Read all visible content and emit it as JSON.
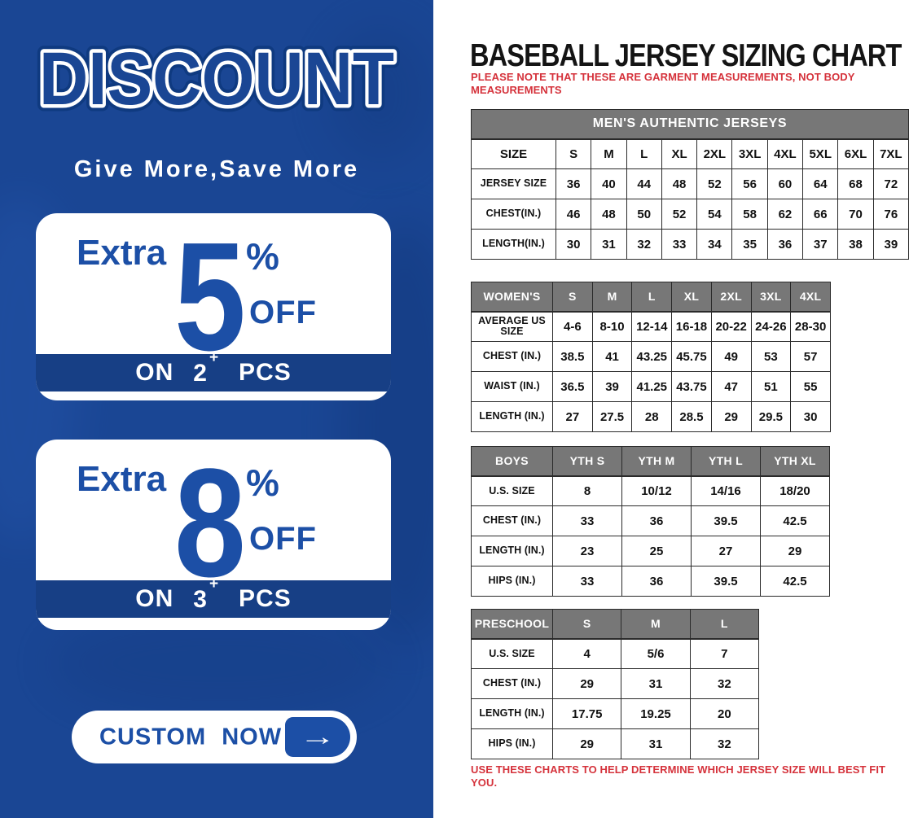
{
  "left_panel": {
    "headline": "DISCOUNT",
    "subtitle": "Give More,Save More",
    "offers": [
      {
        "extra": "Extra",
        "percent": "5",
        "percent_sign": "%",
        "off_label": "OFF",
        "on_label": "ON",
        "qty": "2",
        "plus": "+",
        "pcs_label": "PCS"
      },
      {
        "extra": "Extra",
        "percent": "8",
        "percent_sign": "%",
        "off_label": "OFF",
        "on_label": "ON",
        "qty": "3",
        "plus": "+",
        "pcs_label": "PCS"
      }
    ],
    "cta": {
      "label": "CUSTOM NOW",
      "arrow": "→"
    },
    "colors": {
      "panel_blue": "#1a4694",
      "accent_blue": "#1c4fa6",
      "band_blue": "#173f85"
    }
  },
  "right_panel": {
    "title": "BASEBALL JERSEY SIZING CHART",
    "note_top": "PLEASE NOTE THAT THESE ARE GARMENT MEASUREMENTS, NOT BODY MEASUREMENTS",
    "note_bottom": "USE THESE CHARTS TO HELP DETERMINE WHICH JERSEY SIZE WILL BEST FIT YOU.",
    "colors": {
      "header_gray": "#777777",
      "note_red": "#d5323b",
      "border": "#2a2a2a"
    },
    "tables": [
      {
        "banner": "MEN'S AUTHENTIC JERSEYS",
        "gray_header": false,
        "label_width": 104,
        "header": [
          "SIZE",
          "S",
          "M",
          "L",
          "XL",
          "2XL",
          "3XL",
          "4XL",
          "5XL",
          "6XL",
          "7XL"
        ],
        "rows": [
          [
            "JERSEY SIZE",
            "36",
            "40",
            "44",
            "48",
            "52",
            "56",
            "60",
            "64",
            "68",
            "72"
          ],
          [
            "CHEST(IN.)",
            "46",
            "48",
            "50",
            "52",
            "54",
            "58",
            "62",
            "66",
            "70",
            "76"
          ],
          [
            "LENGTH(IN.)",
            "30",
            "31",
            "32",
            "33",
            "34",
            "35",
            "36",
            "37",
            "38",
            "39"
          ]
        ]
      },
      {
        "banner": null,
        "gray_header": true,
        "label_width": 100,
        "header": [
          "WOMEN'S",
          "S",
          "M",
          "L",
          "XL",
          "2XL",
          "3XL",
          "4XL"
        ],
        "rows": [
          [
            "AVERAGE US SIZE",
            "4-6",
            "8-10",
            "12-14",
            "16-18",
            "20-22",
            "24-26",
            "28-30"
          ],
          [
            "CHEST (IN.)",
            "38.5",
            "41",
            "43.25",
            "45.75",
            "49",
            "53",
            "57"
          ],
          [
            "WAIST (IN.)",
            "36.5",
            "39",
            "41.25",
            "43.75",
            "47",
            "51",
            "55"
          ],
          [
            "LENGTH (IN.)",
            "27",
            "27.5",
            "28",
            "28.5",
            "29",
            "29.5",
            "30"
          ]
        ]
      },
      {
        "banner": null,
        "gray_header": true,
        "label_width": 100,
        "header": [
          "BOYS",
          "YTH S",
          "YTH M",
          "YTH L",
          "YTH XL"
        ],
        "rows": [
          [
            "U.S. SIZE",
            "8",
            "10/12",
            "14/16",
            "18/20"
          ],
          [
            "CHEST (IN.)",
            "33",
            "36",
            "39.5",
            "42.5"
          ],
          [
            "LENGTH (IN.)",
            "23",
            "25",
            "27",
            "29"
          ],
          [
            "HIPS (IN.)",
            "33",
            "36",
            "39.5",
            "42.5"
          ]
        ]
      },
      {
        "banner": null,
        "gray_header": true,
        "label_width": 100,
        "header": [
          "PRESCHOOL",
          "S",
          "M",
          "L"
        ],
        "rows": [
          [
            "U.S. SIZE",
            "4",
            "5/6",
            "7"
          ],
          [
            "CHEST (IN.)",
            "29",
            "31",
            "32"
          ],
          [
            "LENGTH (IN.)",
            "17.75",
            "19.25",
            "20"
          ],
          [
            "HIPS (IN.)",
            "29",
            "31",
            "32"
          ]
        ]
      }
    ]
  }
}
